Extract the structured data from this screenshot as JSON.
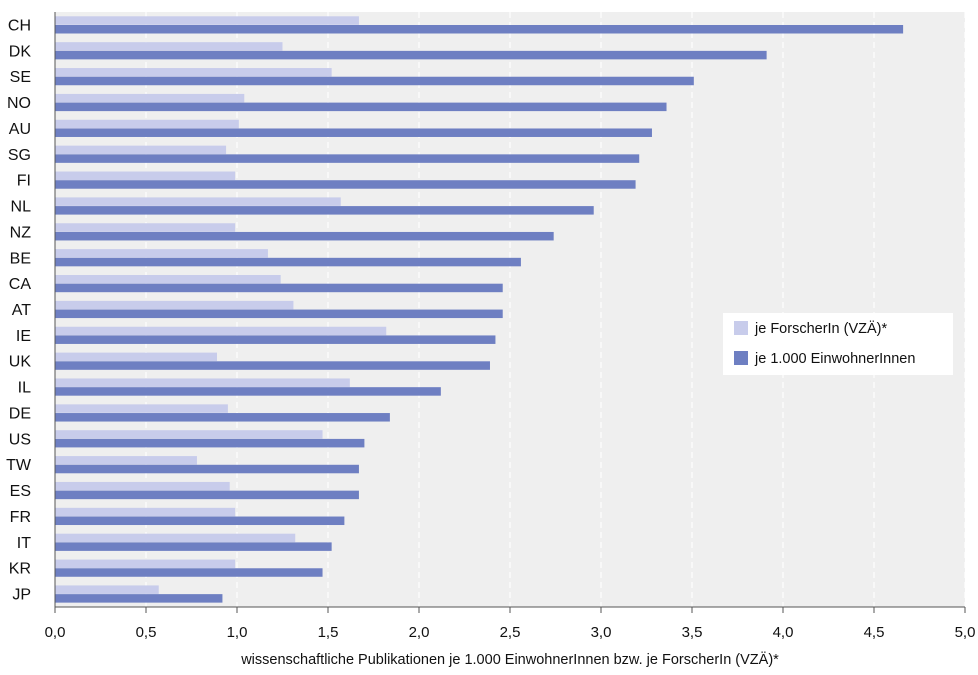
{
  "chart_data": {
    "type": "bar",
    "orientation": "horizontal",
    "title": "",
    "xlabel": "wissenschaftliche Publikationen je 1.000 EinwohnerInnen bzw. je ForscherIn (VZÄ)*",
    "ylabel": "",
    "xlim": [
      0,
      5
    ],
    "xticks": [
      0,
      0.5,
      1,
      1.5,
      2,
      2.5,
      3,
      3.5,
      4,
      4.5,
      5
    ],
    "xtick_labels": [
      "0,0",
      "0,5",
      "1,0",
      "1,5",
      "2,0",
      "2,5",
      "3,0",
      "3,5",
      "4,0",
      "4,5",
      "5,0"
    ],
    "grid": "vertical dashed",
    "legend_position": "right-middle",
    "categories": [
      "CH",
      "DK",
      "SE",
      "NO",
      "AU",
      "SG",
      "FI",
      "NL",
      "NZ",
      "BE",
      "CA",
      "AT",
      "IE",
      "UK",
      "IL",
      "DE",
      "US",
      "TW",
      "ES",
      "FR",
      "IT",
      "KR",
      "JP"
    ],
    "series": [
      {
        "name": "je ForscherIn (VZÄ)*",
        "color": "#c8cceb",
        "values": [
          1.67,
          1.25,
          1.52,
          1.04,
          1.01,
          0.94,
          0.99,
          1.57,
          0.99,
          1.17,
          1.24,
          1.31,
          1.82,
          0.89,
          1.62,
          0.95,
          1.47,
          0.78,
          0.96,
          0.99,
          1.32,
          0.99,
          0.57
        ]
      },
      {
        "name": "je 1.000 EinwohnerInnen",
        "color": "#6e7fc2",
        "values": [
          4.66,
          3.91,
          3.51,
          3.36,
          3.28,
          3.21,
          3.19,
          2.96,
          2.74,
          2.56,
          2.46,
          2.46,
          2.42,
          2.39,
          2.12,
          1.84,
          1.7,
          1.67,
          1.67,
          1.59,
          1.52,
          1.47,
          0.92
        ]
      }
    ]
  }
}
